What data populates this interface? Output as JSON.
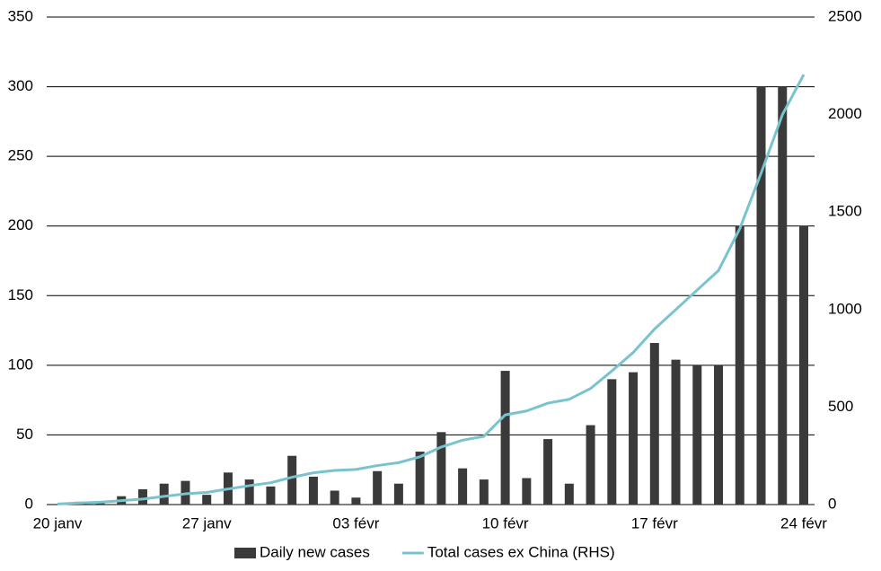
{
  "chart_data": {
    "type": "bar-line",
    "categories": [
      "20 janv",
      null,
      null,
      null,
      null,
      null,
      null,
      "27 janv",
      null,
      null,
      null,
      null,
      null,
      null,
      "03 févr",
      null,
      null,
      null,
      null,
      null,
      null,
      "10 févr",
      null,
      null,
      null,
      null,
      null,
      null,
      "17 févr",
      null,
      null,
      null,
      null,
      null,
      null,
      "24 févr"
    ],
    "series": [
      {
        "name": "Daily new cases",
        "type": "bar",
        "color": "#3a3a3a",
        "values": [
          0,
          2,
          1,
          6,
          11,
          15,
          17,
          7,
          23,
          18,
          13,
          35,
          20,
          10,
          5,
          24,
          15,
          38,
          52,
          26,
          18,
          96,
          19,
          47,
          15,
          57,
          90,
          95,
          116,
          104,
          100,
          100,
          200,
          300,
          300,
          200
        ]
      },
      {
        "name": "Total cases ex China (RHS)",
        "type": "line",
        "axis": "y2",
        "color": "#78c3cd",
        "values": [
          3,
          8,
          12,
          20,
          28,
          42,
          55,
          62,
          80,
          97,
          112,
          140,
          163,
          175,
          180,
          200,
          215,
          245,
          295,
          330,
          350,
          460,
          480,
          520,
          540,
          595,
          685,
          780,
          900,
          1000,
          1100,
          1200,
          1415,
          1700,
          2000,
          2205
        ]
      }
    ],
    "ylim": [
      0,
      350
    ],
    "yticks": [
      0,
      50,
      100,
      150,
      200,
      250,
      300,
      350
    ],
    "y2lim": [
      0,
      2500
    ],
    "y2ticks": [
      0,
      500,
      1000,
      1500,
      2000,
      2500
    ],
    "grid": true,
    "legend": "bottom"
  }
}
